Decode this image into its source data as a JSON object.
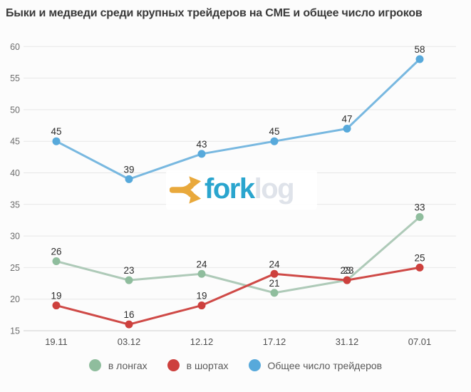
{
  "page": {
    "background": "#fcfcfc"
  },
  "chart_data": {
    "type": "line",
    "title": "Быки и медведи среди крупных трейдеров на CME и общее число игроков",
    "categories": [
      "19.11",
      "03.12",
      "12.12",
      "17.12",
      "31.12",
      "07.01"
    ],
    "yticks": [
      60,
      55,
      50,
      45,
      40,
      35,
      30,
      25,
      20,
      15
    ],
    "ylim": [
      15,
      60
    ],
    "grid": true,
    "legend_position": "bottom",
    "annotations": "point values shown above each marker",
    "series": [
      {
        "name": "в лонгах",
        "values": [
          26,
          23,
          24,
          21,
          23,
          33
        ],
        "marker_color": "#8fbd9d",
        "line_color": "#aecab8"
      },
      {
        "name": "в шортах",
        "values": [
          19,
          16,
          19,
          24,
          23,
          25
        ],
        "marker_color": "#cd403d",
        "line_color": "#cf4a47"
      },
      {
        "name": "Общее число трейдеров",
        "values": [
          45,
          39,
          43,
          45,
          47,
          58
        ],
        "marker_color": "#57a9db",
        "line_color": "#78b8e0"
      }
    ],
    "colors": {
      "grid": "#e7e7e7",
      "baseline": "#cfcfcf",
      "y_tick_label": "#6d6d6d",
      "x_tick_label": "#4f4f4f",
      "annotation": "#2d2d2d",
      "title": "#3a3a3a",
      "legend_text": "#595959"
    }
  },
  "watermark": {
    "brand_fork": "fork",
    "brand_log": "log",
    "icon": "forklog-fork-arrows-icon",
    "icon_color": "#e9a93c",
    "fork_text_color": "#2aa5ce",
    "log_text_color": "#dfe3ea"
  }
}
